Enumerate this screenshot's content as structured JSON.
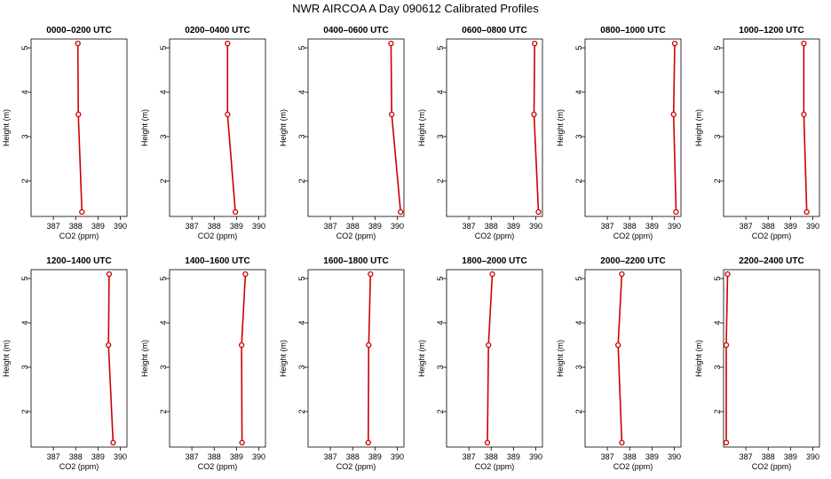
{
  "figure": {
    "title": "NWR AIRCOA A  Day 090612  Calibrated Profiles"
  },
  "colors": {
    "profile_line": "#cc0000",
    "profile_marker": "#cc0000",
    "axis": "#000000"
  },
  "chart_data": [
    {
      "type": "line",
      "title": "0000–0200 UTC",
      "xlabel": "CO2 (ppm)",
      "ylabel": "Height (m)",
      "xlim": [
        386.0,
        390.3
      ],
      "ylim": [
        1.2,
        5.2
      ],
      "xticks": [
        387,
        388,
        389,
        390
      ],
      "yticks": [
        2,
        3,
        4,
        5
      ],
      "series": [
        {
          "x": [
            388.28,
            388.12,
            388.1
          ],
          "y": [
            1.3,
            3.5,
            5.1
          ]
        }
      ]
    },
    {
      "type": "line",
      "title": "0200–0400 UTC",
      "xlabel": "CO2 (ppm)",
      "ylabel": "Height (m)",
      "xlim": [
        386.0,
        390.3
      ],
      "ylim": [
        1.2,
        5.2
      ],
      "xticks": [
        387,
        388,
        389,
        390
      ],
      "yticks": [
        2,
        3,
        4,
        5
      ],
      "series": [
        {
          "x": [
            388.95,
            388.6,
            388.6
          ],
          "y": [
            1.3,
            3.5,
            5.1
          ]
        }
      ]
    },
    {
      "type": "line",
      "title": "0400–0600 UTC",
      "xlabel": "CO2 (ppm)",
      "ylabel": "Height (m)",
      "xlim": [
        386.0,
        390.3
      ],
      "ylim": [
        1.2,
        5.2
      ],
      "xticks": [
        387,
        388,
        389,
        390
      ],
      "yticks": [
        2,
        3,
        4,
        5
      ],
      "series": [
        {
          "x": [
            390.15,
            389.75,
            389.72
          ],
          "y": [
            1.3,
            3.5,
            5.1
          ]
        }
      ]
    },
    {
      "type": "line",
      "title": "0600–0800 UTC",
      "xlabel": "CO2 (ppm)",
      "ylabel": "Height (m)",
      "xlim": [
        386.0,
        390.3
      ],
      "ylim": [
        1.2,
        5.2
      ],
      "xticks": [
        387,
        388,
        389,
        390
      ],
      "yticks": [
        2,
        3,
        4,
        5
      ],
      "series": [
        {
          "x": [
            390.12,
            389.92,
            389.95
          ],
          "y": [
            1.3,
            3.5,
            5.1
          ]
        }
      ]
    },
    {
      "type": "line",
      "title": "0800–1000 UTC",
      "xlabel": "CO2 (ppm)",
      "ylabel": "Height (m)",
      "xlim": [
        386.0,
        390.3
      ],
      "ylim": [
        1.2,
        5.2
      ],
      "xticks": [
        387,
        388,
        389,
        390
      ],
      "yticks": [
        2,
        3,
        4,
        5
      ],
      "series": [
        {
          "x": [
            390.08,
            389.97,
            390.02
          ],
          "y": [
            1.3,
            3.5,
            5.1
          ]
        }
      ]
    },
    {
      "type": "line",
      "title": "1000–1200 UTC",
      "xlabel": "CO2 (ppm)",
      "ylabel": "Height (m)",
      "xlim": [
        386.0,
        390.3
      ],
      "ylim": [
        1.2,
        5.2
      ],
      "xticks": [
        387,
        388,
        389,
        390
      ],
      "yticks": [
        2,
        3,
        4,
        5
      ],
      "series": [
        {
          "x": [
            389.73,
            389.6,
            389.6
          ],
          "y": [
            1.3,
            3.5,
            5.1
          ]
        }
      ]
    },
    {
      "type": "line",
      "title": "1200–1400 UTC",
      "xlabel": "CO2 (ppm)",
      "ylabel": "Height (m)",
      "xlim": [
        386.0,
        390.3
      ],
      "ylim": [
        1.2,
        5.2
      ],
      "xticks": [
        387,
        388,
        389,
        390
      ],
      "yticks": [
        2,
        3,
        4,
        5
      ],
      "series": [
        {
          "x": [
            389.68,
            389.47,
            389.5
          ],
          "y": [
            1.3,
            3.5,
            5.1
          ]
        }
      ]
    },
    {
      "type": "line",
      "title": "1400–1600 UTC",
      "xlabel": "CO2 (ppm)",
      "ylabel": "Height (m)",
      "xlim": [
        386.0,
        390.3
      ],
      "ylim": [
        1.2,
        5.2
      ],
      "xticks": [
        387,
        388,
        389,
        390
      ],
      "yticks": [
        2,
        3,
        4,
        5
      ],
      "series": [
        {
          "x": [
            389.25,
            389.23,
            389.4
          ],
          "y": [
            1.3,
            3.5,
            5.1
          ]
        }
      ]
    },
    {
      "type": "line",
      "title": "1600–1800 UTC",
      "xlabel": "CO2 (ppm)",
      "ylabel": "Height (m)",
      "xlim": [
        386.0,
        390.3
      ],
      "ylim": [
        1.2,
        5.2
      ],
      "xticks": [
        387,
        388,
        389,
        390
      ],
      "yticks": [
        2,
        3,
        4,
        5
      ],
      "series": [
        {
          "x": [
            388.7,
            388.72,
            388.8
          ],
          "y": [
            1.3,
            3.5,
            5.1
          ]
        }
      ]
    },
    {
      "type": "line",
      "title": "1800–2000 UTC",
      "xlabel": "CO2 (ppm)",
      "ylabel": "Height (m)",
      "xlim": [
        386.0,
        390.3
      ],
      "ylim": [
        1.2,
        5.2
      ],
      "xticks": [
        387,
        388,
        389,
        390
      ],
      "yticks": [
        2,
        3,
        4,
        5
      ],
      "series": [
        {
          "x": [
            387.83,
            387.88,
            388.05
          ],
          "y": [
            1.3,
            3.5,
            5.1
          ]
        }
      ]
    },
    {
      "type": "line",
      "title": "2000–2200 UTC",
      "xlabel": "CO2 (ppm)",
      "ylabel": "Height (m)",
      "xlim": [
        386.0,
        390.3
      ],
      "ylim": [
        1.2,
        5.2
      ],
      "xticks": [
        387,
        388,
        389,
        390
      ],
      "yticks": [
        2,
        3,
        4,
        5
      ],
      "series": [
        {
          "x": [
            387.65,
            387.48,
            387.65
          ],
          "y": [
            1.3,
            3.5,
            5.1
          ]
        }
      ]
    },
    {
      "type": "line",
      "title": "2200–2400 UTC",
      "xlabel": "CO2 (ppm)",
      "ylabel": "Height (m)",
      "xlim": [
        386.0,
        390.3
      ],
      "ylim": [
        1.2,
        5.2
      ],
      "xticks": [
        387,
        388,
        389,
        390
      ],
      "yticks": [
        2,
        3,
        4,
        5
      ],
      "series": [
        {
          "x": [
            386.12,
            386.12,
            386.18
          ],
          "y": [
            1.3,
            3.5,
            5.1
          ]
        }
      ]
    }
  ]
}
